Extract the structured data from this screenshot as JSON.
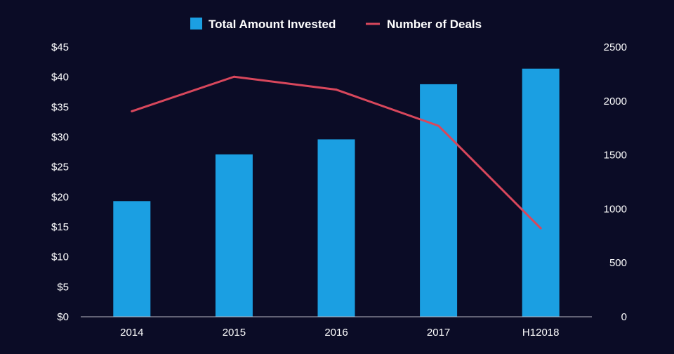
{
  "colors": {
    "background": "#0b0c26",
    "bar": "#1b9fe2",
    "line": "#d8475c",
    "text": "#ffffff",
    "axis": "#b8b8c4"
  },
  "legend": {
    "bar_label": "Total Amount Invested",
    "line_label": "Number of Deals",
    "position": "top-center"
  },
  "chart_data": {
    "type": "bar",
    "categories": [
      "2014",
      "2015",
      "2016",
      "2017",
      "H12018"
    ],
    "series": [
      {
        "name": "Total Amount Invested",
        "type": "bar",
        "axis": "left",
        "values": [
          19.3,
          27.1,
          29.6,
          38.8,
          41.4
        ]
      },
      {
        "name": "Number of Deals",
        "type": "line",
        "axis": "right",
        "values": [
          1905,
          2225,
          2105,
          1770,
          820
        ]
      }
    ],
    "y_left": {
      "ylim": [
        0,
        45
      ],
      "ticks": [
        "$0",
        "$5",
        "$10",
        "$15",
        "$20",
        "$25",
        "$30",
        "$35",
        "$40",
        "$45"
      ],
      "tick_values": [
        0,
        5,
        10,
        15,
        20,
        25,
        30,
        35,
        40,
        45
      ]
    },
    "y_right": {
      "ylim": [
        0,
        2500
      ],
      "ticks": [
        "0",
        "500",
        "1000",
        "1500",
        "2000",
        "2500"
      ],
      "tick_values": [
        0,
        500,
        1000,
        1500,
        2000,
        2500
      ]
    },
    "grid": false
  }
}
